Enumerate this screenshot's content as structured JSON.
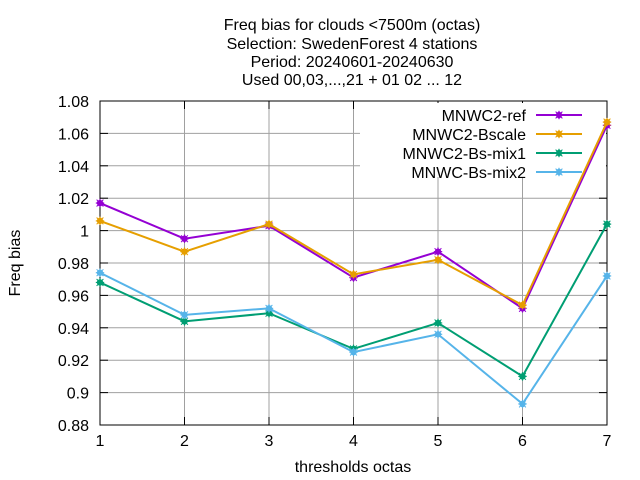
{
  "chart_data": {
    "type": "line",
    "title_lines": [
      "Freq bias  for clouds <7500m (octas)",
      "Selection: SwedenForest      4 stations",
      "Period: 20240601-20240630",
      "Used 00,03,...,21 + 01 02 ... 12"
    ],
    "xlabel": "thresholds octas",
    "ylabel": "Freq bias",
    "x": [
      1,
      2,
      3,
      4,
      5,
      6,
      7
    ],
    "xlim": [
      1,
      7
    ],
    "ylim": [
      0.88,
      1.08
    ],
    "yticks": [
      0.88,
      0.9,
      0.92,
      0.94,
      0.96,
      0.98,
      1,
      1.02,
      1.04,
      1.06,
      1.08
    ],
    "ytick_labels": [
      "0.88",
      "0.9",
      "0.92",
      "0.94",
      "0.96",
      "0.98",
      "1",
      "1.02",
      "1.04",
      "1.06",
      "1.08"
    ],
    "xtick_labels": [
      "1",
      "2",
      "3",
      "4",
      "5",
      "6",
      "7"
    ],
    "grid": true,
    "legend_position": "top-right",
    "series": [
      {
        "name": "MNWC2-ref",
        "color": "#9400d3",
        "values": [
          1.017,
          0.995,
          1.003,
          0.971,
          0.987,
          0.952,
          1.065
        ]
      },
      {
        "name": "MNWC2-Bscale",
        "color": "#e69f00",
        "values": [
          1.006,
          0.987,
          1.004,
          0.973,
          0.982,
          0.954,
          1.067
        ]
      },
      {
        "name": "MNWC2-Bs-mix1",
        "color": "#009e73",
        "values": [
          0.968,
          0.944,
          0.949,
          0.927,
          0.943,
          0.91,
          1.004
        ]
      },
      {
        "name": "MNWC-Bs-mix2",
        "color": "#56b4e9",
        "values": [
          0.974,
          0.948,
          0.952,
          0.925,
          0.936,
          0.893,
          0.972
        ]
      }
    ]
  }
}
